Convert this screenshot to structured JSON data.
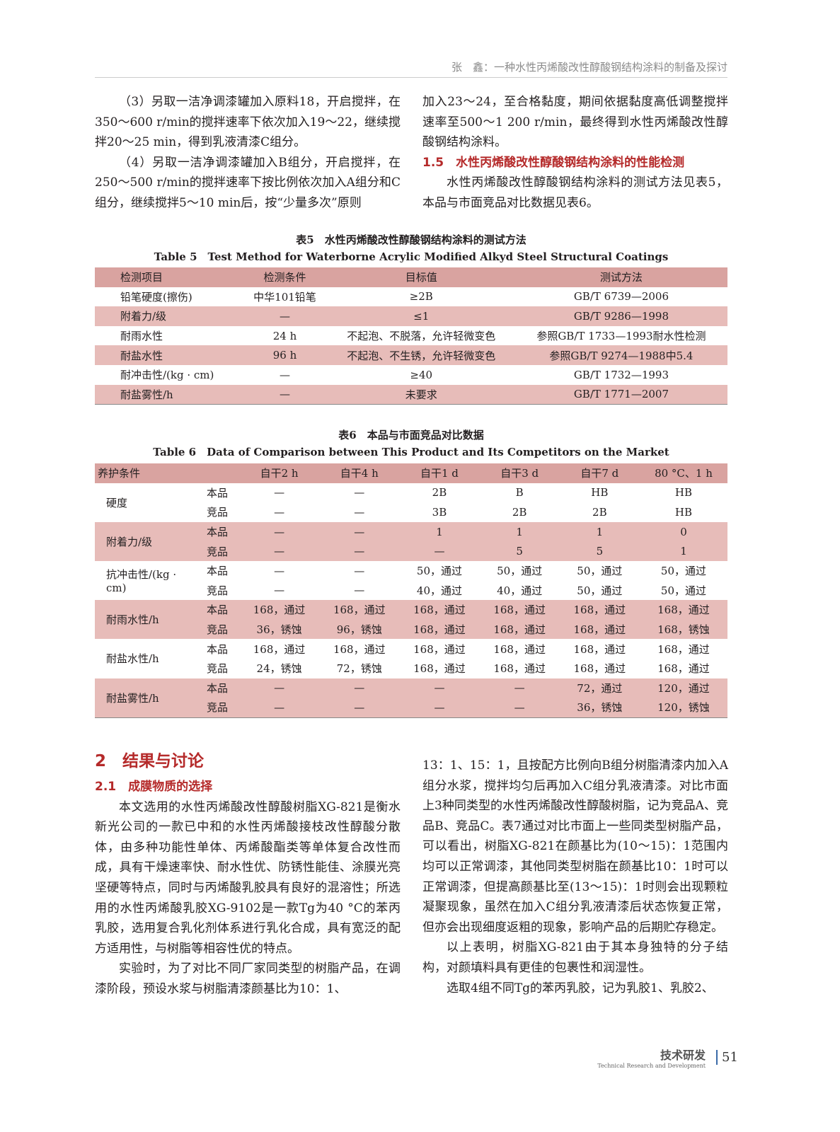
{
  "header": "张　鑫：一种水性丙烯酸改性醇酸钢结构涂料的制备及探讨",
  "left_top": [
    "（3）另取一洁净调漆罐加入原料18，开启搅拌，在350～600 r/min的搅拌速率下依次加入19～22，继续搅拌20～25 min，得到乳液清漆C组分。",
    "（4）另取一洁净调漆罐加入B组分，开启搅拌，在250～500 r/min的搅拌速率下按比例依次加入A组分和C组分，继续搅拌5～10 min后，按“少量多次”原则"
  ],
  "right_top": {
    "p1": "加入23～24，至合格黏度，期间依据黏度高低调整搅拌速率至500～1 200 r/min，最终得到水性丙烯酸改性醇酸钢结构涂料。",
    "heading": "1.5　水性丙烯酸改性醇酸钢结构涂料的性能检测",
    "p2": "水性丙烯酸改性醇酸钢结构涂料的测试方法见表5，本品与市面竞品对比数据见表6。"
  },
  "table5": {
    "caption_cn": "表5　水性丙烯酸改性醇酸钢结构涂料的测试方法",
    "caption_en": "Table 5　Test Method for Waterborne Acrylic Modified Alkyd Steel Structural Coatings",
    "headers": [
      "检测项目",
      "检测条件",
      "目标值",
      "测试方法"
    ],
    "rows": [
      [
        "铅笔硬度(擦伤)",
        "中华101铅笔",
        "≥2B",
        "GB/T 6739—2006"
      ],
      [
        "附着力/级",
        "—",
        "≤1",
        "GB/T 9286—1998"
      ],
      [
        "耐雨水性",
        "24 h",
        "不起泡、不脱落，允许轻微变色",
        "参照GB/T 1733—1993耐水性检测"
      ],
      [
        "耐盐水性",
        "96 h",
        "不起泡、不生锈，允许轻微变色",
        "参照GB/T 9274—1988中5.4"
      ],
      [
        "耐冲击性/(kg · cm)",
        "—",
        "≥40",
        "GB/T 1732—1993"
      ],
      [
        "耐盐雾性/h",
        "—",
        "未要求",
        "GB/T 1771—2007"
      ]
    ]
  },
  "table6": {
    "caption_cn": "表6　本品与市面竞品对比数据",
    "caption_en": "Table 6　Data of Comparison between This Product and Its Competitors on the Market",
    "headers": [
      "养护条件",
      "",
      "自干2 h",
      "自干4 h",
      "自干1 d",
      "自干3 d",
      "自干7 d",
      "80 °C、1 h"
    ],
    "groups": [
      {
        "name": "硬度",
        "rows": [
          [
            "本品",
            "—",
            "—",
            "2B",
            "B",
            "HB",
            "HB"
          ],
          [
            "竞品",
            "—",
            "—",
            "3B",
            "2B",
            "2B",
            "HB"
          ]
        ]
      },
      {
        "name": "附着力/级",
        "rows": [
          [
            "本品",
            "—",
            "—",
            "1",
            "1",
            "1",
            "0"
          ],
          [
            "竞品",
            "—",
            "—",
            "—",
            "5",
            "5",
            "1"
          ]
        ]
      },
      {
        "name": "抗冲击性/(kg · cm)",
        "rows": [
          [
            "本品",
            "—",
            "—",
            "50，通过",
            "50，通过",
            "50，通过",
            "50，通过"
          ],
          [
            "竞品",
            "—",
            "—",
            "40，通过",
            "40，通过",
            "50，通过",
            "50，通过"
          ]
        ]
      },
      {
        "name": "耐雨水性/h",
        "rows": [
          [
            "本品",
            "168，通过",
            "168，通过",
            "168，通过",
            "168，通过",
            "168，通过",
            "168，通过"
          ],
          [
            "竞品",
            "36，锈蚀",
            "96，锈蚀",
            "168，通过",
            "168，通过",
            "168，通过",
            "168，锈蚀"
          ]
        ]
      },
      {
        "name": "耐盐水性/h",
        "rows": [
          [
            "本品",
            "168，通过",
            "168，通过",
            "168，通过",
            "168，通过",
            "168，通过",
            "168，通过"
          ],
          [
            "竞品",
            "24，锈蚀",
            "72，锈蚀",
            "168，通过",
            "168，通过",
            "168，通过",
            "168，通过"
          ]
        ]
      },
      {
        "name": "耐盐雾性/h",
        "rows": [
          [
            "本品",
            "—",
            "—",
            "—",
            "—",
            "72，通过",
            "120，通过"
          ],
          [
            "竞品",
            "—",
            "—",
            "—",
            "—",
            "36，锈蚀",
            "120，锈蚀"
          ]
        ]
      }
    ]
  },
  "section2": {
    "heading": "2　结果与讨论",
    "sub": "2.1　成膜物质的选择",
    "left": [
      "本文选用的水性丙烯酸改性醇酸树脂XG-821是衡水新光公司的一款已中和的水性丙烯酸接枝改性醇酸分散体，由多种功能性单体、丙烯酸酯类等单体复合改性而成，具有干燥速率快、耐水性优、防锈性能佳、涂膜光亮坚硬等特点，同时与丙烯酸乳胶具有良好的混溶性；所选用的水性丙烯酸乳胶XG-9102是一款Tg为40 °C的苯丙乳胶，选用复合乳化剂体系进行乳化合成，具有宽泛的配方适用性，与树脂等相容性优的特点。",
      "实验时，为了对比不同厂家同类型的树脂产品，在调漆阶段，预设水浆与树脂清漆颜基比为10：1、"
    ],
    "right": [
      "13：1、15：1，且按配方比例向B组分树脂清漆内加入A组分水浆，搅拌均匀后再加入C组分乳液清漆。对比市面上3种同类型的水性丙烯酸改性醇酸树脂，记为竞品A、竞品B、竞品C。表7通过对比市面上一些同类型树脂产品，可以看出，树脂XG-821在颜基比为(10～15)：1范围内均可以正常调漆，其他同类型树脂在颜基比10：1时可以正常调漆，但提高颜基比至(13～15)：1时则会出现颗粒凝聚现象，虽然在加入C组分乳液清漆后状态恢复正常，但亦会出现细度返粗的现象，影响产品的后期贮存稳定。",
      "以上表明，树脂XG-821由于其本身独特的分子结构，对颜填料具有更佳的包裹性和润湿性。",
      "选取4组不同Tg的苯丙乳胶，记为乳胶1、乳胶2、"
    ]
  },
  "footer": {
    "section": "技术研发",
    "section_en": "Technical Research and Development",
    "page": "51"
  }
}
